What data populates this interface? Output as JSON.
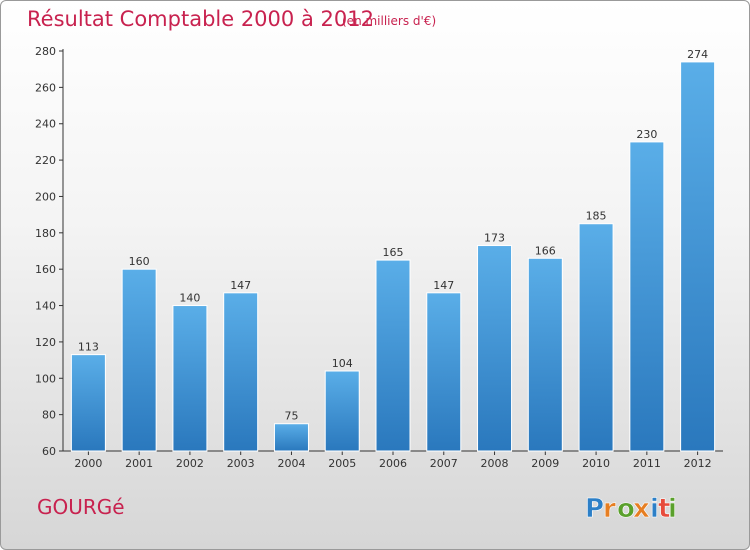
{
  "header": {
    "title": "Résultat Comptable 2000 à 2012",
    "subtitle": "(en milliers d'€)"
  },
  "footer": {
    "place": "GOURGé",
    "logo_text": "Proxiti"
  },
  "colors": {
    "title": "#c8224f",
    "bar_top": "#5aaee8",
    "bar_bottom": "#2a78bd",
    "logo_letters": [
      "#2c7fc7",
      "#e67e22",
      "#5aa02c",
      "#e67e22",
      "#2c7fc7",
      "#e74c3c",
      "#5aa02c"
    ]
  },
  "chart_data": {
    "type": "bar",
    "categories": [
      "2000",
      "2001",
      "2002",
      "2003",
      "2004",
      "2005",
      "2006",
      "2007",
      "2008",
      "2009",
      "2010",
      "2011",
      "2012"
    ],
    "values": [
      113,
      160,
      140,
      147,
      75,
      104,
      165,
      147,
      173,
      166,
      185,
      230,
      274
    ],
    "ylim": [
      60,
      280
    ],
    "yticks": [
      60,
      80,
      100,
      120,
      140,
      160,
      180,
      200,
      220,
      240,
      260,
      280
    ],
    "grid": false,
    "legend": "none"
  }
}
